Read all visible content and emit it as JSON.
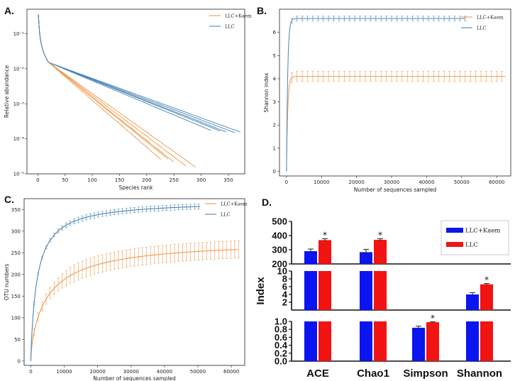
{
  "chart_data": [
    {
      "panel": "A.",
      "type": "line",
      "xlabel": "Species rank",
      "ylabel": "Relative abundance",
      "yscale": "log",
      "xlim": [
        -20,
        380
      ],
      "ylim": [
        1e-05,
        0.5
      ],
      "xticks": [
        0,
        50,
        100,
        150,
        200,
        250,
        300,
        350
      ],
      "ytick_labels": [
        "10⁻⁵",
        "10⁻⁴",
        "10⁻³",
        "10⁻²",
        "10⁻¹"
      ],
      "legend": [
        "LLC+Kaem",
        "LLC"
      ],
      "series": [
        {
          "name": "LLC+Kaem",
          "color": "#ee9a4f",
          "n_samples": 5,
          "max_rank": [
            225,
            240,
            250,
            272,
            290
          ],
          "decay_rate": [
            0.031,
            0.029,
            0.0285,
            0.027,
            0.0255
          ]
        },
        {
          "name": "LLC",
          "color": "#4a86b7",
          "n_samples": 5,
          "max_rank": [
            318,
            335,
            345,
            362,
            372
          ],
          "decay_rate": [
            0.015,
            0.0143,
            0.014,
            0.0135,
            0.013
          ]
        }
      ]
    },
    {
      "panel": "B.",
      "type": "line",
      "xlabel": "Number of sequences sampled",
      "ylabel": "Shannon index",
      "xlim": [
        -2000,
        64000
      ],
      "ylim": [
        -0.2,
        7
      ],
      "xticks": [
        0,
        10000,
        20000,
        30000,
        40000,
        50000,
        60000
      ],
      "yticks": [
        0,
        1,
        2,
        3,
        4,
        5,
        6
      ],
      "legend": [
        "LLC+Kaem",
        "LLC"
      ],
      "series": [
        {
          "name": "LLC+Kaem",
          "color": "#ee9a4f",
          "x_max": 62500,
          "plateau": 4.1,
          "error": 0.22
        },
        {
          "name": "LLC",
          "color": "#4a86b7",
          "x_max": 51000,
          "plateau": 6.6,
          "error": 0.1
        }
      ]
    },
    {
      "panel": "C.",
      "type": "line",
      "xlabel": "Number of sequences sampled",
      "ylabel": "OTU numbers",
      "xlim": [
        -2000,
        64000
      ],
      "ylim": [
        -10,
        375
      ],
      "xticks": [
        0,
        10000,
        20000,
        30000,
        40000,
        50000,
        60000
      ],
      "yticks": [
        0,
        50,
        100,
        150,
        200,
        250,
        300,
        350
      ],
      "legend": [
        "LLC+Kaem",
        "LLC"
      ],
      "series": [
        {
          "name": "LLC+Kaem",
          "color": "#ee9a4f",
          "x_max": 62500,
          "end_value": 258,
          "error": 20
        },
        {
          "name": "LLC",
          "color": "#4a86b7",
          "x_max": 51000,
          "end_value": 357,
          "error": 6
        }
      ]
    },
    {
      "panel": "D.",
      "type": "bar",
      "ylabel": "Index",
      "categories": [
        "ACE",
        "Chao1",
        "Simpson",
        "Shannon"
      ],
      "legend": [
        "LLC+Kaem",
        "LLC"
      ],
      "series": [
        {
          "name": "LLC+Kaem",
          "color": "#0b15f0",
          "values": [
            290,
            283,
            0.84,
            4.0
          ],
          "errors": [
            15,
            20,
            0.04,
            0.45
          ]
        },
        {
          "name": "LLC",
          "color": "#f21313",
          "values": [
            368,
            370,
            0.98,
            6.6
          ],
          "errors": [
            10,
            8,
            0.01,
            0.2
          ]
        }
      ],
      "significance": [
        "*",
        "*",
        "*",
        "*"
      ],
      "segments": [
        {
          "ylim": [
            200,
            500
          ],
          "ticks": [
            "500",
            "400",
            "300",
            "200"
          ]
        },
        {
          "ylim": [
            0,
            10
          ],
          "ticks": [
            "10",
            "8",
            "6",
            "4",
            "2"
          ]
        },
        {
          "ylim": [
            0,
            1
          ],
          "ticks": [
            "1.0",
            "0.8",
            "0.6",
            "0.4",
            "0.2",
            "0.0"
          ]
        }
      ]
    }
  ]
}
